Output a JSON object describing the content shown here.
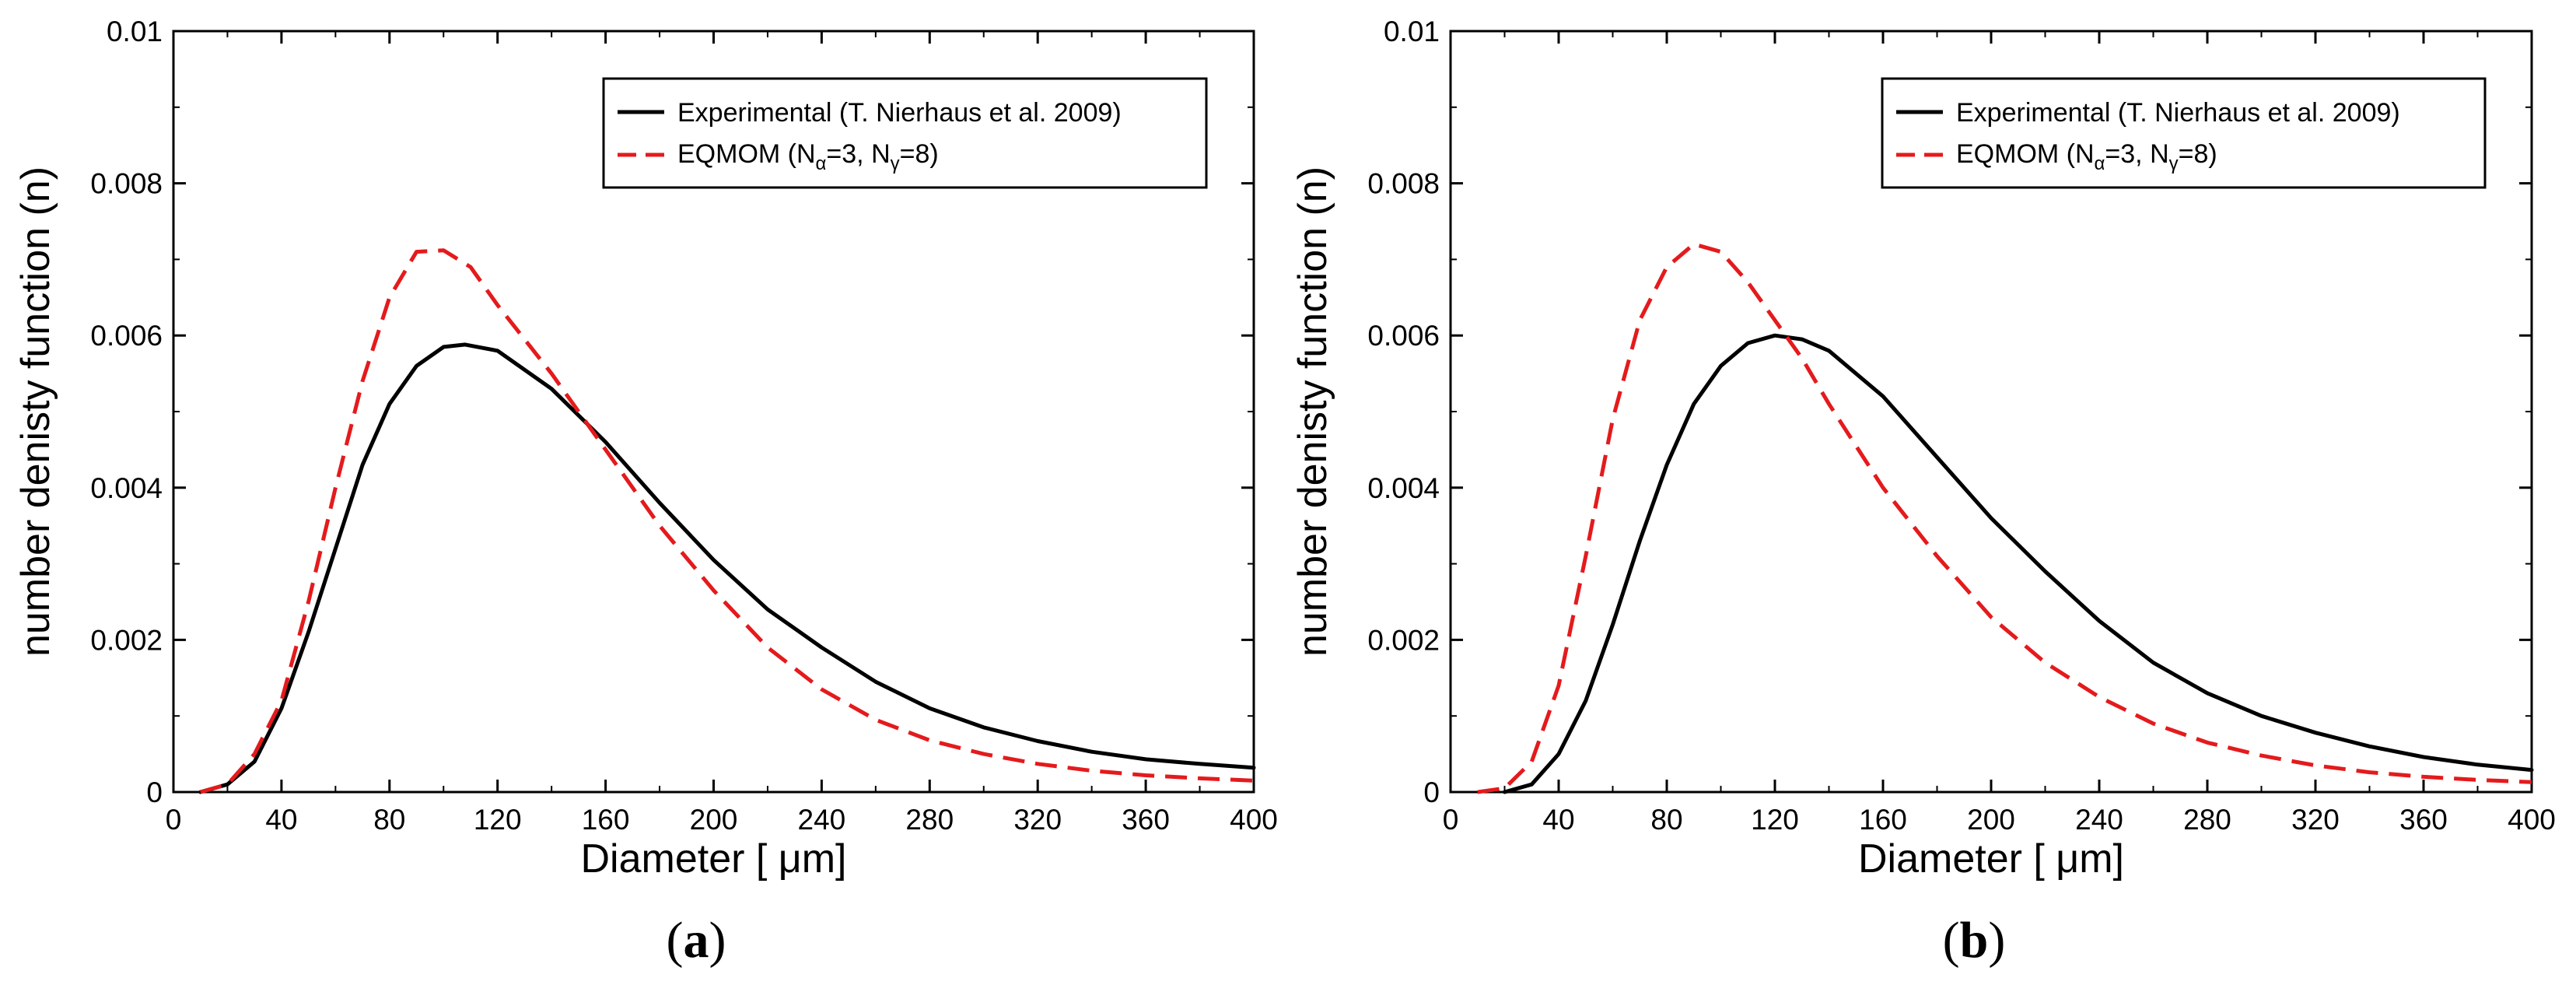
{
  "chart_data": [
    {
      "type": "line",
      "panel_label": {
        "open": "(",
        "letter": "a",
        "close": ")"
      },
      "xlabel": "Diameter [ μm]",
      "ylabel": "number denisty function (n)",
      "xlim": [
        0,
        400
      ],
      "ylim": [
        0,
        0.01
      ],
      "x_ticks": [
        0,
        40,
        80,
        120,
        160,
        200,
        240,
        280,
        320,
        360,
        400
      ],
      "x_tick_labels": [
        "0",
        "40",
        "80",
        "120",
        "160",
        "200",
        "240",
        "280",
        "320",
        "360",
        "400"
      ],
      "y_ticks": [
        0,
        0.002,
        0.004,
        0.006,
        0.008,
        0.01
      ],
      "y_tick_labels": [
        "0",
        "0.002",
        "0.004",
        "0.006",
        "0.008",
        "0.01"
      ],
      "grid": false,
      "legend_position": "top-right",
      "series": [
        {
          "name": "Experimental (T. Nierhaus et al. 2009)",
          "style": "solid",
          "color": "#000000",
          "x": [
            10,
            20,
            30,
            40,
            50,
            60,
            70,
            80,
            90,
            100,
            108,
            120,
            140,
            160,
            180,
            200,
            220,
            240,
            260,
            280,
            300,
            320,
            340,
            360,
            380,
            400
          ],
          "y": [
            0.0,
            0.0001,
            0.0004,
            0.0011,
            0.0021,
            0.0032,
            0.0043,
            0.0051,
            0.0056,
            0.00585,
            0.00588,
            0.0058,
            0.0053,
            0.0046,
            0.0038,
            0.00305,
            0.0024,
            0.0019,
            0.00145,
            0.0011,
            0.00085,
            0.00067,
            0.00053,
            0.00043,
            0.00037,
            0.00032
          ]
        },
        {
          "name": "EQMOM (Nα=3, Nγ=8)",
          "name_parts": {
            "a": "EQMOM (N",
            "b": "α",
            "c": "=3, N",
            "d": "γ",
            "e": "=8)"
          },
          "style": "dashed",
          "color": "#e41a1c",
          "x": [
            10,
            20,
            30,
            40,
            50,
            60,
            70,
            80,
            90,
            100,
            110,
            120,
            140,
            160,
            180,
            200,
            220,
            240,
            260,
            280,
            300,
            320,
            340,
            360,
            380,
            400
          ],
          "y": [
            0.0,
            0.0001,
            0.0005,
            0.0012,
            0.0025,
            0.004,
            0.0054,
            0.0065,
            0.0071,
            0.00712,
            0.0069,
            0.0064,
            0.0055,
            0.0045,
            0.0035,
            0.00265,
            0.0019,
            0.00135,
            0.00095,
            0.00068,
            0.0005,
            0.00037,
            0.00028,
            0.00022,
            0.00018,
            0.00015
          ]
        }
      ]
    },
    {
      "type": "line",
      "panel_label": {
        "open": "(",
        "letter": "b",
        "close": ")"
      },
      "xlabel": "Diameter [ μm]",
      "ylabel": "number denisty function (n)",
      "xlim": [
        0,
        400
      ],
      "ylim": [
        0,
        0.01
      ],
      "x_ticks": [
        0,
        40,
        80,
        120,
        160,
        200,
        240,
        280,
        320,
        360,
        400
      ],
      "x_tick_labels": [
        "0",
        "40",
        "80",
        "120",
        "160",
        "200",
        "240",
        "280",
        "320",
        "360",
        "400"
      ],
      "y_ticks": [
        0,
        0.002,
        0.004,
        0.006,
        0.008,
        0.01
      ],
      "y_tick_labels": [
        "0",
        "0.002",
        "0.004",
        "0.006",
        "0.008",
        "0.01"
      ],
      "grid": false,
      "legend_position": "top-right",
      "series": [
        {
          "name": "Experimental (T. Nierhaus et al. 2009)",
          "style": "solid",
          "color": "#000000",
          "x": [
            20,
            30,
            40,
            50,
            60,
            70,
            80,
            90,
            100,
            110,
            120,
            130,
            140,
            160,
            180,
            200,
            220,
            240,
            260,
            280,
            300,
            320,
            340,
            360,
            380,
            400
          ],
          "y": [
            0.0,
            0.0001,
            0.0005,
            0.0012,
            0.0022,
            0.0033,
            0.0043,
            0.0051,
            0.0056,
            0.0059,
            0.006,
            0.00595,
            0.0058,
            0.0052,
            0.0044,
            0.0036,
            0.0029,
            0.00225,
            0.0017,
            0.0013,
            0.001,
            0.00078,
            0.0006,
            0.00046,
            0.00036,
            0.00029
          ]
        },
        {
          "name": "EQMOM (Nα=3, Nγ=8)",
          "name_parts": {
            "a": "EQMOM (N",
            "b": "α",
            "c": "=3, N",
            "d": "γ",
            "e": "=8)"
          },
          "style": "dashed",
          "color": "#e41a1c",
          "x": [
            10,
            20,
            30,
            40,
            50,
            60,
            70,
            80,
            90,
            100,
            110,
            120,
            130,
            140,
            160,
            180,
            200,
            220,
            240,
            260,
            280,
            300,
            320,
            340,
            360,
            380,
            400
          ],
          "y": [
            0.0,
            5e-05,
            0.0004,
            0.0014,
            0.0031,
            0.0049,
            0.0062,
            0.0069,
            0.0072,
            0.0071,
            0.0067,
            0.0062,
            0.0057,
            0.0051,
            0.004,
            0.0031,
            0.0023,
            0.0017,
            0.00125,
            0.0009,
            0.00065,
            0.00048,
            0.00035,
            0.00026,
            0.0002,
            0.00016,
            0.00013
          ]
        }
      ]
    }
  ]
}
